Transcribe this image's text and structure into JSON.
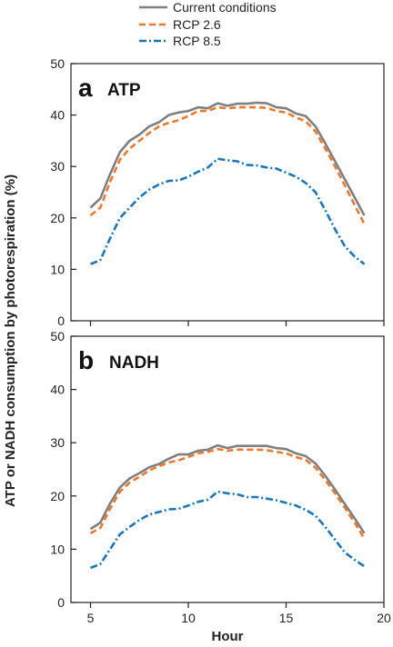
{
  "chart_data": [
    {
      "type": "line",
      "panel_letter": "a",
      "panel_title": "ATP",
      "xlabel": "Hour",
      "ylabel": "ATP or NADH consumption by photorespiration (%)",
      "xlim": [
        4,
        20
      ],
      "ylim": [
        0,
        50
      ],
      "xticks": [
        5,
        10,
        15,
        20
      ],
      "yticks": [
        0,
        10,
        20,
        30,
        40,
        50
      ],
      "x": [
        5,
        5.5,
        6,
        6.5,
        7,
        7.5,
        8,
        8.5,
        9,
        9.5,
        10,
        10.5,
        11,
        11.5,
        12,
        12.5,
        13,
        13.5,
        14,
        14.5,
        15,
        15.5,
        16,
        16.5,
        17,
        17.5,
        18,
        18.5,
        19
      ],
      "series": [
        {
          "name": "Current conditions",
          "color": "#808080",
          "dash": "solid",
          "values": [
            22.0,
            23.8,
            28.5,
            32.8,
            35.0,
            36.2,
            37.8,
            38.6,
            40.0,
            40.5,
            40.8,
            41.5,
            41.3,
            42.3,
            41.8,
            42.2,
            42.2,
            42.4,
            42.3,
            41.5,
            41.3,
            40.3,
            39.8,
            37.8,
            34.5,
            31.0,
            27.5,
            24.0,
            20.5
          ]
        },
        {
          "name": "RCP 2.6",
          "color": "#F07828",
          "dash": "dashed",
          "values": [
            20.5,
            22.0,
            27.0,
            31.3,
            33.5,
            35.0,
            36.5,
            37.8,
            38.5,
            39.0,
            39.8,
            40.8,
            40.8,
            41.5,
            41.3,
            41.5,
            41.5,
            41.5,
            41.4,
            40.8,
            40.5,
            39.5,
            38.8,
            36.8,
            33.5,
            30.0,
            26.3,
            22.5,
            18.8
          ]
        },
        {
          "name": "RCP 8.5",
          "color": "#1A77BE",
          "dash": "dashdot",
          "values": [
            11.0,
            11.8,
            16.0,
            20.0,
            22.0,
            24.0,
            25.5,
            26.5,
            27.2,
            27.3,
            28.0,
            29.0,
            29.8,
            31.5,
            31.2,
            31.0,
            30.3,
            30.2,
            29.8,
            29.6,
            28.8,
            28.0,
            26.8,
            25.0,
            21.5,
            17.8,
            14.5,
            12.5,
            11.0
          ]
        }
      ]
    },
    {
      "type": "line",
      "panel_letter": "b",
      "panel_title": "NADH",
      "xlabel": "Hour",
      "ylabel": "ATP or NADH consumption by photorespiration (%)",
      "xlim": [
        4,
        20
      ],
      "ylim": [
        0,
        50
      ],
      "xticks": [
        5,
        10,
        15,
        20
      ],
      "xticklabels": [
        "5",
        "10",
        "15",
        "20"
      ],
      "yticks": [
        0,
        10,
        20,
        30,
        40,
        50
      ],
      "x": [
        5,
        5.5,
        6,
        6.5,
        7,
        7.5,
        8,
        8.5,
        9,
        9.5,
        10,
        10.5,
        11,
        11.5,
        12,
        12.5,
        13,
        13.5,
        14,
        14.5,
        15,
        15.5,
        16,
        16.5,
        17,
        17.5,
        18,
        18.5,
        19
      ],
      "series": [
        {
          "name": "Current conditions",
          "color": "#808080",
          "dash": "solid",
          "values": [
            13.8,
            15.0,
            18.6,
            21.6,
            23.3,
            24.3,
            25.4,
            26.0,
            27.0,
            27.8,
            27.8,
            28.5,
            28.7,
            29.5,
            29.0,
            29.4,
            29.4,
            29.4,
            29.4,
            29.0,
            28.8,
            28.0,
            27.5,
            26.1,
            23.8,
            21.2,
            18.5,
            15.8,
            13.0
          ]
        },
        {
          "name": "RCP 2.6",
          "color": "#F07828",
          "dash": "dashed",
          "values": [
            13.0,
            14.0,
            17.6,
            20.8,
            22.5,
            23.6,
            24.8,
            25.6,
            26.3,
            26.7,
            27.3,
            28.0,
            28.3,
            28.8,
            28.5,
            28.7,
            28.7,
            28.7,
            28.6,
            28.3,
            28.0,
            27.3,
            26.8,
            25.3,
            23.0,
            20.5,
            17.8,
            15.0,
            12.0
          ]
        },
        {
          "name": "RCP 8.5",
          "color": "#1A77BE",
          "dash": "dashdot",
          "values": [
            6.5,
            7.2,
            10.0,
            12.8,
            14.2,
            15.5,
            16.5,
            17.0,
            17.5,
            17.6,
            18.2,
            18.9,
            19.3,
            20.8,
            20.5,
            20.3,
            19.8,
            19.8,
            19.5,
            19.2,
            18.7,
            18.2,
            17.4,
            16.3,
            14.2,
            11.8,
            9.4,
            8.0,
            6.8
          ]
        }
      ]
    }
  ],
  "legend": {
    "placement": "top-center",
    "entries": [
      {
        "label": "Current conditions",
        "color": "#808080",
        "dash": "solid"
      },
      {
        "label": "RCP 2.6",
        "color": "#F07828",
        "dash": "dashed"
      },
      {
        "label": "RCP 8.5",
        "color": "#1A77BE",
        "dash": "dashdot"
      }
    ]
  }
}
